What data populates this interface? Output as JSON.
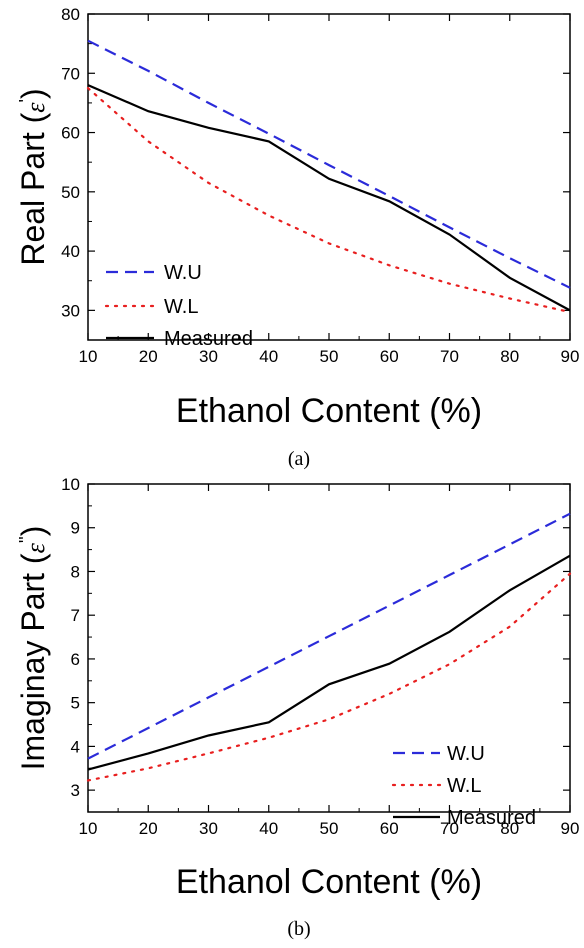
{
  "chart_data": [
    {
      "type": "line",
      "panel_label": "(a)",
      "x": [
        10,
        20,
        30,
        40,
        50,
        60,
        70,
        80,
        90
      ],
      "xlabel": "Ethanol Content (%)",
      "ylabel": "Real Part (",
      "ylabel_symbol": "ε",
      "ylabel_prime": "'",
      "ylabel_close": ")",
      "xlim": [
        10,
        90
      ],
      "ylim": [
        25,
        80
      ],
      "xticks": [
        10,
        20,
        30,
        40,
        50,
        60,
        70,
        80,
        90
      ],
      "yticks": [
        30,
        40,
        50,
        60,
        70,
        80
      ],
      "legend_position": "bottom-left",
      "series": [
        {
          "name": "W.U",
          "color": "#2b2bd9",
          "style": "dashed",
          "values": [
            75.5,
            70.4,
            65.0,
            59.8,
            54.5,
            49.3,
            44.0,
            38.8,
            33.8
          ]
        },
        {
          "name": "W.L",
          "color": "#e81f1f",
          "style": "dotted",
          "values": [
            67.5,
            58.5,
            51.5,
            46.0,
            41.3,
            37.6,
            34.5,
            32.0,
            29.7
          ]
        },
        {
          "name": "Measured",
          "color": "#000000",
          "style": "solid",
          "values": [
            68.0,
            63.6,
            60.8,
            58.5,
            52.2,
            48.4,
            42.8,
            35.5,
            30.0
          ]
        }
      ]
    },
    {
      "type": "line",
      "panel_label": "(b)",
      "x": [
        10,
        20,
        30,
        40,
        50,
        60,
        70,
        80,
        90
      ],
      "xlabel": "Ethanol Content (%)",
      "ylabel": "Imaginay Part (",
      "ylabel_symbol": "ε",
      "ylabel_prime": "''",
      "ylabel_close": ")",
      "xlim": [
        10,
        90
      ],
      "ylim": [
        2.5,
        10
      ],
      "xticks": [
        10,
        20,
        30,
        40,
        50,
        60,
        70,
        80,
        90
      ],
      "yticks": [
        3,
        4,
        5,
        6,
        7,
        8,
        9,
        10
      ],
      "legend_position": "bottom-right",
      "series": [
        {
          "name": "W.U",
          "color": "#2b2bd9",
          "style": "dashed",
          "values": [
            3.72,
            4.42,
            5.12,
            5.82,
            6.52,
            7.22,
            7.92,
            8.62,
            9.32
          ]
        },
        {
          "name": "W.L",
          "color": "#e81f1f",
          "style": "dotted",
          "values": [
            3.22,
            3.5,
            3.84,
            4.2,
            4.62,
            5.2,
            5.88,
            6.74,
            7.95
          ]
        },
        {
          "name": "Measured",
          "color": "#000000",
          "style": "solid",
          "values": [
            3.47,
            3.84,
            4.25,
            4.55,
            5.42,
            5.89,
            6.62,
            7.57,
            8.36
          ]
        }
      ]
    }
  ]
}
